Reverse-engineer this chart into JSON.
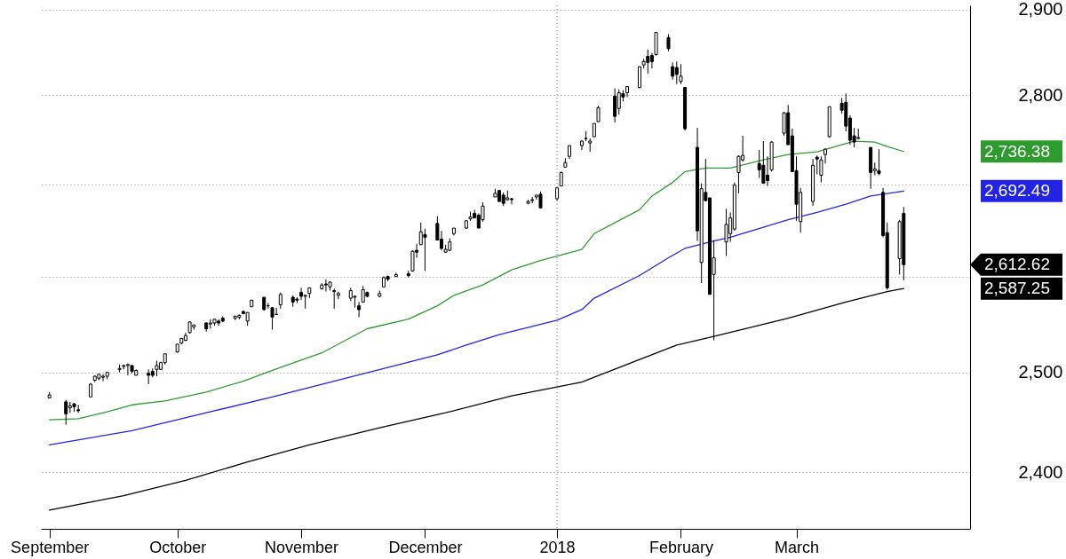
{
  "chart_data": {
    "type": "candlestick",
    "x": [
      "2017-09-01",
      "2017-09-05",
      "2017-09-06",
      "2017-09-07",
      "2017-09-08",
      "2017-09-11",
      "2017-09-12",
      "2017-09-13",
      "2017-09-14",
      "2017-09-15",
      "2017-09-18",
      "2017-09-19",
      "2017-09-20",
      "2017-09-21",
      "2017-09-22",
      "2017-09-25",
      "2017-09-26",
      "2017-09-27",
      "2017-09-28",
      "2017-09-29",
      "2017-10-02",
      "2017-10-03",
      "2017-10-04",
      "2017-10-05",
      "2017-10-06",
      "2017-10-09",
      "2017-10-10",
      "2017-10-11",
      "2017-10-12",
      "2017-10-13",
      "2017-10-16",
      "2017-10-17",
      "2017-10-18",
      "2017-10-19",
      "2017-10-20",
      "2017-10-23",
      "2017-10-24",
      "2017-10-25",
      "2017-10-26",
      "2017-10-27",
      "2017-10-30",
      "2017-10-31",
      "2017-11-01",
      "2017-11-02",
      "2017-11-03",
      "2017-11-06",
      "2017-11-07",
      "2017-11-08",
      "2017-11-09",
      "2017-11-10",
      "2017-11-13",
      "2017-11-14",
      "2017-11-15",
      "2017-11-16",
      "2017-11-17",
      "2017-11-20",
      "2017-11-21",
      "2017-11-22",
      "2017-11-24",
      "2017-11-27",
      "2017-11-28",
      "2017-11-29",
      "2017-11-30",
      "2017-12-01",
      "2017-12-04",
      "2017-12-05",
      "2017-12-06",
      "2017-12-07",
      "2017-12-08",
      "2017-12-11",
      "2017-12-12",
      "2017-12-13",
      "2017-12-14",
      "2017-12-15",
      "2017-12-18",
      "2017-12-19",
      "2017-12-20",
      "2017-12-21",
      "2017-12-22",
      "2017-12-26",
      "2017-12-27",
      "2017-12-28",
      "2017-12-29",
      "2018-01-02",
      "2018-01-03",
      "2018-01-04",
      "2018-01-05",
      "2018-01-08",
      "2018-01-09",
      "2018-01-10",
      "2018-01-11",
      "2018-01-12",
      "2018-01-16",
      "2018-01-17",
      "2018-01-18",
      "2018-01-19",
      "2018-01-22",
      "2018-01-23",
      "2018-01-24",
      "2018-01-25",
      "2018-01-26",
      "2018-01-29",
      "2018-01-30",
      "2018-01-31",
      "2018-02-01",
      "2018-02-02",
      "2018-02-05",
      "2018-02-06",
      "2018-02-07",
      "2018-02-08",
      "2018-02-09",
      "2018-02-12",
      "2018-02-13",
      "2018-02-14",
      "2018-02-15",
      "2018-02-16",
      "2018-02-20",
      "2018-02-21",
      "2018-02-22",
      "2018-02-23",
      "2018-02-26",
      "2018-02-27",
      "2018-02-28",
      "2018-03-01",
      "2018-03-02",
      "2018-03-05",
      "2018-03-06",
      "2018-03-07",
      "2018-03-08",
      "2018-03-09",
      "2018-03-12",
      "2018-03-13",
      "2018-03-14",
      "2018-03-15",
      "2018-03-16",
      "2018-03-19",
      "2018-03-20",
      "2018-03-21",
      "2018-03-22",
      "2018-03-23",
      "2018-03-26",
      "2018-03-27"
    ],
    "ohlc": [
      [
        2474,
        2480,
        2474,
        2477
      ],
      [
        2470,
        2472,
        2447,
        2458
      ],
      [
        2464,
        2470,
        2459,
        2466
      ],
      [
        2468,
        2469,
        2460,
        2465
      ],
      [
        2462,
        2467,
        2459,
        2461
      ],
      [
        2475,
        2489,
        2475,
        2488
      ],
      [
        2492,
        2497,
        2490,
        2496
      ],
      [
        2494,
        2498,
        2492,
        2498
      ],
      [
        2495,
        2498,
        2491,
        2496
      ],
      [
        2496,
        2500,
        2493,
        2500
      ],
      [
        2503,
        2508,
        2500,
        2504
      ],
      [
        2506,
        2508,
        2503,
        2507
      ],
      [
        2507,
        2509,
        2497,
        2508
      ],
      [
        2507,
        2507,
        2499,
        2501
      ],
      [
        2497,
        2503,
        2497,
        2502
      ],
      [
        2499,
        2503,
        2488,
        2497
      ],
      [
        2501,
        2504,
        2495,
        2497
      ],
      [
        2503,
        2512,
        2496,
        2507
      ],
      [
        2503,
        2511,
        2503,
        2510
      ],
      [
        2510,
        2519,
        2508,
        2519
      ],
      [
        2521,
        2529,
        2520,
        2529
      ],
      [
        2530,
        2535,
        2529,
        2535
      ],
      [
        2533,
        2541,
        2532,
        2538
      ],
      [
        2541,
        2553,
        2540,
        2552
      ],
      [
        2547,
        2549,
        2544,
        2549
      ],
      [
        2551,
        2552,
        2542,
        2545
      ],
      [
        2550,
        2555,
        2545,
        2551
      ],
      [
        2551,
        2555,
        2548,
        2555
      ],
      [
        2553,
        2555,
        2548,
        2551
      ],
      [
        2556,
        2558,
        2552,
        2553
      ],
      [
        2556,
        2559,
        2554,
        2558
      ],
      [
        2557,
        2560,
        2555,
        2559
      ],
      [
        2563,
        2564,
        2560,
        2561
      ],
      [
        2553,
        2562,
        2548,
        2562
      ],
      [
        2568,
        2575,
        2568,
        2575
      ],
      [
        2578,
        2578,
        2564,
        2565
      ],
      [
        2569,
        2572,
        2566,
        2569
      ],
      [
        2567,
        2567,
        2544,
        2557
      ],
      [
        2560,
        2567,
        2560,
        2560
      ],
      [
        2570,
        2583,
        2566,
        2581
      ],
      [
        2578,
        2580,
        2568,
        2573
      ],
      [
        2576,
        2578,
        2572,
        2575
      ],
      [
        2583,
        2588,
        2575,
        2579
      ],
      [
        2579,
        2581,
        2566,
        2580
      ],
      [
        2582,
        2588,
        2577,
        2588
      ],
      [
        2587,
        2593,
        2586,
        2591
      ],
      [
        2592,
        2597,
        2584,
        2591
      ],
      [
        2589,
        2595,
        2585,
        2594
      ],
      [
        2584,
        2587,
        2566,
        2585
      ],
      [
        2580,
        2584,
        2576,
        2582
      ],
      [
        2577,
        2588,
        2574,
        2585
      ],
      [
        2578,
        2580,
        2567,
        2579
      ],
      [
        2569,
        2573,
        2557,
        2565
      ],
      [
        2573,
        2590,
        2573,
        2586
      ],
      [
        2583,
        2584,
        2578,
        2579
      ],
      [
        2579,
        2585,
        2578,
        2582
      ],
      [
        2589,
        2600,
        2589,
        2599
      ],
      [
        2600,
        2601,
        2595,
        2597
      ],
      [
        2600,
        2604,
        2600,
        2602
      ],
      [
        2603,
        2606,
        2599,
        2601
      ],
      [
        2606,
        2628,
        2605,
        2627
      ],
      [
        2628,
        2635,
        2620,
        2626
      ],
      [
        2634,
        2658,
        2634,
        2648
      ],
      [
        2645,
        2651,
        2606,
        2642
      ],
      [
        2657,
        2665,
        2639,
        2639
      ],
      [
        2640,
        2649,
        2628,
        2630
      ],
      [
        2626,
        2634,
        2625,
        2629
      ],
      [
        2628,
        2641,
        2627,
        2637
      ],
      [
        2646,
        2652,
        2644,
        2652
      ],
      [
        2652,
        2660,
        2651,
        2660
      ],
      [
        2662,
        2670,
        2660,
        2664
      ],
      [
        2668,
        2672,
        2663,
        2663
      ],
      [
        2666,
        2668,
        2652,
        2652
      ],
      [
        2661,
        2680,
        2659,
        2676
      ],
      [
        2686,
        2695,
        2686,
        2690
      ],
      [
        2693,
        2694,
        2681,
        2681
      ],
      [
        2688,
        2691,
        2676,
        2679
      ],
      [
        2683,
        2693,
        2682,
        2685
      ],
      [
        2684,
        2685,
        2678,
        2683
      ],
      [
        2679,
        2683,
        2678,
        2681
      ],
      [
        2682,
        2686,
        2679,
        2683
      ],
      [
        2686,
        2688,
        2683,
        2688
      ],
      [
        2689,
        2692,
        2674,
        2674
      ],
      [
        2684,
        2696,
        2682,
        2696
      ],
      [
        2698,
        2714,
        2698,
        2713
      ],
      [
        2719,
        2729,
        2719,
        2724
      ],
      [
        2731,
        2743,
        2728,
        2743
      ],
      [
        2743,
        2749,
        2738,
        2748
      ],
      [
        2751,
        2759,
        2748,
        2751
      ],
      [
        2746,
        2751,
        2736,
        2748
      ],
      [
        2753,
        2768,
        2753,
        2768
      ],
      [
        2770,
        2788,
        2770,
        2786
      ],
      [
        2799,
        2808,
        2769,
        2776
      ],
      [
        2785,
        2807,
        2778,
        2803
      ],
      [
        2802,
        2806,
        2793,
        2798
      ],
      [
        2803,
        2810,
        2798,
        2810
      ],
      [
        2809,
        2833,
        2808,
        2833
      ],
      [
        2835,
        2842,
        2831,
        2839
      ],
      [
        2845,
        2853,
        2825,
        2838
      ],
      [
        2846,
        2849,
        2831,
        2839
      ],
      [
        2847,
        2873,
        2846,
        2873
      ],
      [
        2867,
        2871,
        2851,
        2854
      ],
      [
        2833,
        2838,
        2818,
        2822
      ],
      [
        2832,
        2839,
        2813,
        2824
      ],
      [
        2816,
        2836,
        2813,
        2822
      ],
      [
        2809,
        2809,
        2760,
        2762
      ],
      [
        2741,
        2763,
        2638,
        2649
      ],
      [
        2615,
        2701,
        2593,
        2695
      ],
      [
        2691,
        2728,
        2681,
        2682
      ],
      [
        2685,
        2685,
        2581,
        2581
      ],
      [
        2602,
        2639,
        2533,
        2620
      ],
      [
        2637,
        2673,
        2622,
        2656
      ],
      [
        2646,
        2669,
        2637,
        2663
      ],
      [
        2651,
        2702,
        2649,
        2699
      ],
      [
        2713,
        2732,
        2690,
        2731
      ],
      [
        2727,
        2754,
        2725,
        2732
      ],
      [
        2723,
        2738,
        2707,
        2716
      ],
      [
        2721,
        2748,
        2701,
        2701
      ],
      [
        2710,
        2731,
        2698,
        2704
      ],
      [
        2716,
        2748,
        2714,
        2747
      ],
      [
        2757,
        2781,
        2754,
        2780
      ],
      [
        2780,
        2789,
        2744,
        2744
      ],
      [
        2754,
        2762,
        2714,
        2714
      ],
      [
        2715,
        2731,
        2660,
        2678
      ],
      [
        2659,
        2696,
        2647,
        2691
      ],
      [
        2681,
        2728,
        2676,
        2721
      ],
      [
        2730,
        2732,
        2711,
        2728
      ],
      [
        2710,
        2731,
        2702,
        2727
      ],
      [
        2733,
        2740,
        2723,
        2739
      ],
      [
        2753,
        2787,
        2752,
        2787
      ],
      [
        2791,
        2797,
        2779,
        2783
      ],
      [
        2792,
        2802,
        2759,
        2765
      ],
      [
        2774,
        2777,
        2744,
        2749
      ],
      [
        2754,
        2763,
        2741,
        2747
      ],
      [
        2751,
        2762,
        2750,
        2752
      ],
      [
        2741,
        2741,
        2695,
        2713
      ],
      [
        2715,
        2724,
        2710,
        2717
      ],
      [
        2715,
        2739,
        2710,
        2712
      ],
      [
        2691,
        2696,
        2642,
        2644
      ],
      [
        2647,
        2658,
        2586,
        2588
      ],
      [
        2619,
        2661,
        2602,
        2659
      ],
      [
        2668,
        2675,
        2596,
        2612.62
      ]
    ],
    "series": [
      {
        "type": "line",
        "color": "#2e9b2e",
        "x": [
          "2017-09-01",
          "2017-09-08",
          "2017-09-15",
          "2017-09-21",
          "2017-09-29",
          "2017-10-09",
          "2017-10-18",
          "2017-10-25",
          "2017-11-06",
          "2017-11-17",
          "2017-11-27",
          "2017-12-04",
          "2017-12-08",
          "2017-12-15",
          "2017-12-22",
          "2017-12-29",
          "2018-01-08",
          "2018-01-11",
          "2018-01-22",
          "2018-01-25",
          "2018-01-30",
          "2018-02-02",
          "2018-02-07",
          "2018-02-13",
          "2018-02-21",
          "2018-02-27",
          "2018-03-06",
          "2018-03-12",
          "2018-03-15",
          "2018-03-20",
          "2018-03-23",
          "2018-03-27"
        ],
        "values": [
          2452,
          2453,
          2460,
          2467,
          2471,
          2480,
          2491,
          2502,
          2520,
          2545,
          2555,
          2569,
          2580,
          2591,
          2607,
          2617,
          2629,
          2646,
          2672,
          2687,
          2702,
          2714,
          2718,
          2718,
          2727,
          2733,
          2736,
          2744,
          2748,
          2747,
          2742,
          2736.38
        ]
      },
      {
        "type": "line",
        "color": "#2323e6",
        "x": [
          "2017-09-01",
          "2017-09-21",
          "2017-10-09",
          "2017-10-25",
          "2017-11-10",
          "2017-12-04",
          "2017-12-11",
          "2017-12-19",
          "2018-01-02",
          "2018-01-08",
          "2018-01-11",
          "2018-01-22",
          "2018-01-29",
          "2018-02-02",
          "2018-02-09",
          "2018-02-13",
          "2018-02-21",
          "2018-02-27",
          "2018-03-06",
          "2018-03-13",
          "2018-03-19",
          "2018-03-27"
        ],
        "values": [
          2427,
          2441,
          2459,
          2475,
          2492,
          2518,
          2528,
          2539,
          2554,
          2565,
          2577,
          2601,
          2620,
          2630,
          2638,
          2642,
          2653,
          2661,
          2669,
          2678,
          2687,
          2692.49
        ]
      },
      {
        "type": "line",
        "color": "#000000",
        "x": [
          "2017-09-01",
          "2017-09-19",
          "2017-10-04",
          "2017-10-19",
          "2017-11-03",
          "2017-11-20",
          "2017-12-06",
          "2017-12-22",
          "2018-01-08",
          "2018-01-11",
          "2018-01-31",
          "2018-02-09",
          "2018-02-27",
          "2018-03-13",
          "2018-03-23",
          "2018-03-27"
        ],
        "values": [
          2363,
          2377,
          2392,
          2410,
          2427,
          2444,
          2459,
          2476,
          2490,
          2495,
          2528,
          2537,
          2556,
          2573,
          2584,
          2587.25
        ]
      }
    ],
    "xlim": [
      "2017-08-31",
      "2018-04-11"
    ],
    "ylim": [
      2345,
      2905
    ],
    "yticks": [
      {
        "value": 2400,
        "label": "2,400"
      },
      {
        "value": 2500,
        "label": "2,500"
      },
      {
        "value": 2600,
        "label": null
      },
      {
        "value": 2700,
        "label": null
      },
      {
        "value": 2800,
        "label": "2,800"
      },
      {
        "value": 2900,
        "label": "2,900"
      }
    ],
    "xticks": [
      {
        "value": "2017-09-01",
        "label": "September"
      },
      {
        "value": "2017-10-02",
        "label": "October"
      },
      {
        "value": "2017-11-01",
        "label": "November"
      },
      {
        "value": "2017-12-01",
        "label": "December"
      },
      {
        "value": "2018-01-02",
        "label": "2018"
      },
      {
        "value": "2018-02-01",
        "label": "February"
      },
      {
        "value": "2018-03-01",
        "label": "March"
      }
    ],
    "log": "y",
    "grid": "y",
    "ref_lines": [
      {
        "axis": "x",
        "value": "2018-01-02",
        "line_style": "dotted",
        "color": "#808080"
      }
    ],
    "annotations": [
      "2,736.38",
      "2,692.49",
      "2,612.62",
      "2,587.25"
    ]
  }
}
